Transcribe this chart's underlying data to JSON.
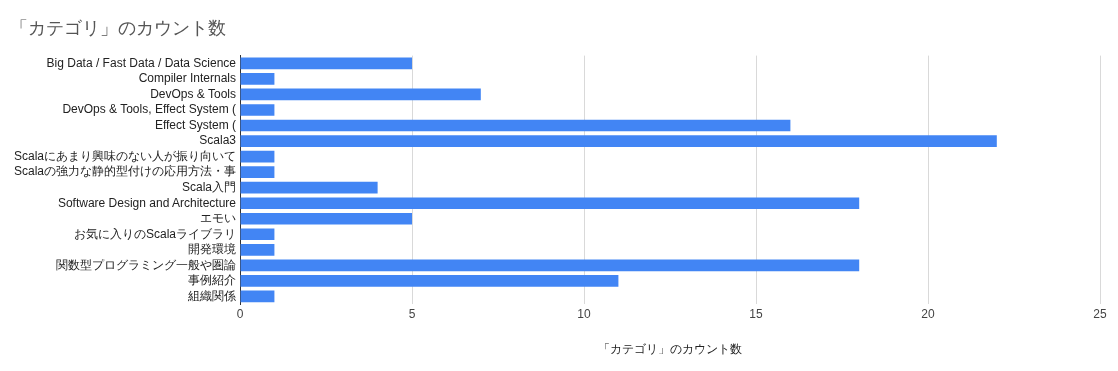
{
  "chart_data": {
    "type": "bar",
    "orientation": "horizontal",
    "title": "「カテゴリ」のカウント数",
    "xlabel": "「カテゴリ」のカウント数",
    "categories": [
      "Big Data / Fast Data / Data Science",
      "Compiler Internals",
      "DevOps & Tools",
      "DevOps & Tools, Effect System (",
      "Effect System (",
      "Scala3",
      "Scalaにあまり興味のない人が振り向いて",
      "Scalaの強力な静的型付けの応用方法・事",
      "Scala入門",
      "Software Design and Architecture",
      "エモい",
      "お気に入りのScalaライブラリ",
      "開発環境",
      "関数型プログラミング一般や圏論",
      "事例紹介",
      "組織関係"
    ],
    "values": [
      5,
      1,
      7,
      1,
      16,
      22,
      1,
      1,
      4,
      18,
      5,
      1,
      1,
      18,
      11,
      1
    ],
    "color": "#4285f4",
    "xlim": [
      0,
      25
    ],
    "xticks": [
      0,
      5,
      10,
      15,
      20,
      25
    ],
    "grid": "x"
  }
}
